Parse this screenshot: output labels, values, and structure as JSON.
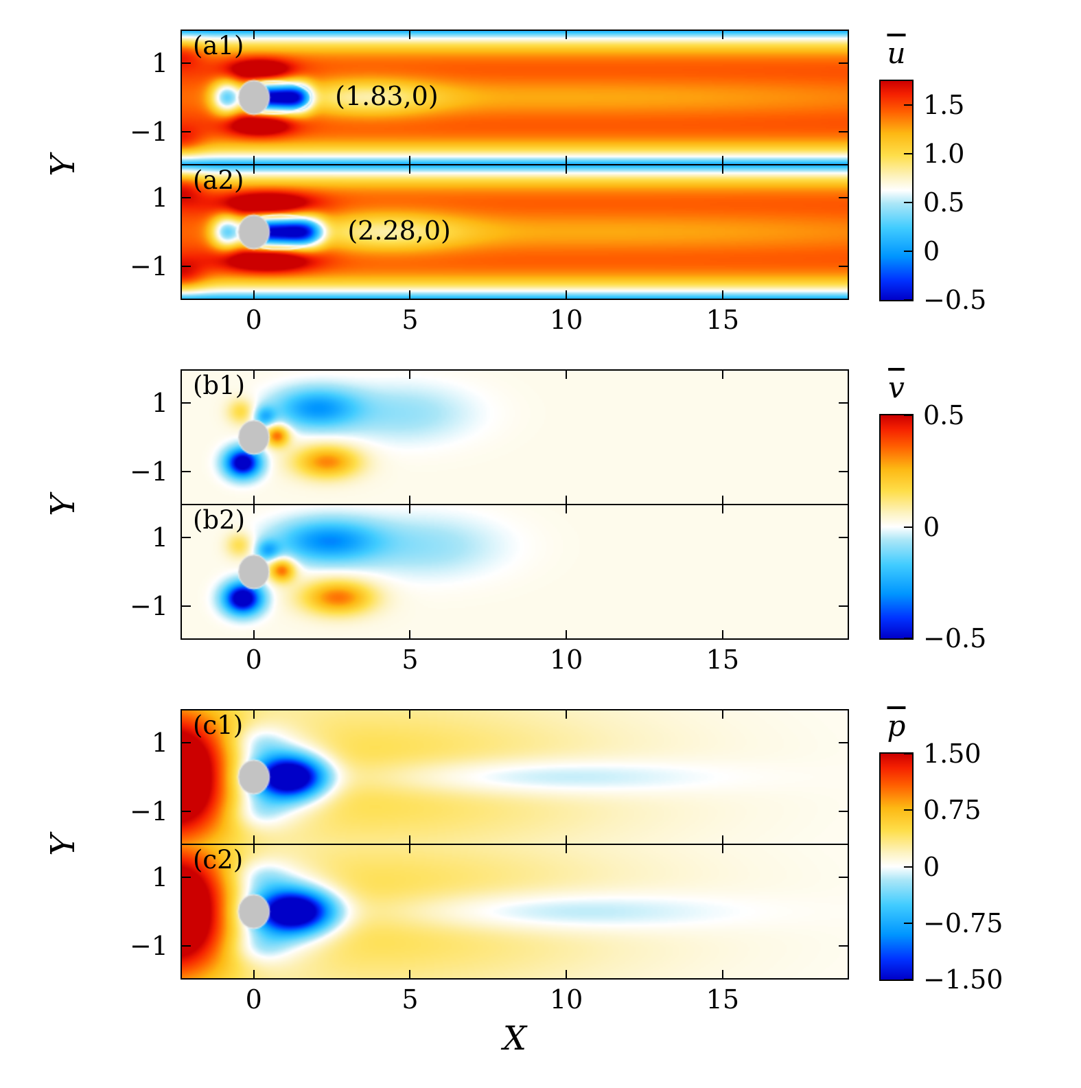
{
  "figure": {
    "xlabel": "X",
    "ylabel": "Y",
    "x_range": [
      -2.3,
      19.0
    ],
    "y_range": [
      -1.95,
      1.95
    ],
    "x_ticks": [
      {
        "v": 0,
        "label": "0"
      },
      {
        "v": 5,
        "label": "5"
      },
      {
        "v": 10,
        "label": "10"
      },
      {
        "v": 15,
        "label": "15"
      }
    ],
    "y_ticks": [
      {
        "v": 1,
        "label": "1"
      },
      {
        "v": -1,
        "label": "−1"
      }
    ]
  },
  "chart_data": {
    "type": "heatmap",
    "description": "Time-averaged flow fields past a circular cylinder: streamwise velocity (a), transverse velocity (b), pressure (c); two cases each.",
    "colormap": [
      [
        0.0,
        "#0000c8"
      ],
      [
        0.09,
        "#0032ff"
      ],
      [
        0.2,
        "#0096ff"
      ],
      [
        0.33,
        "#41ccff"
      ],
      [
        0.44,
        "#aae6f7"
      ],
      [
        0.5,
        "#ffffff"
      ],
      [
        0.56,
        "#fdf3c3"
      ],
      [
        0.66,
        "#fede4a"
      ],
      [
        0.76,
        "#fdb813"
      ],
      [
        0.86,
        "#ff5f00"
      ],
      [
        0.94,
        "#f52000"
      ],
      [
        1.0,
        "#cc0000"
      ]
    ],
    "cylinder": {
      "x": 0,
      "y": 0,
      "radius": 0.5,
      "color": "#c3c3c3"
    },
    "groups": [
      {
        "id": "u",
        "colorbar": {
          "label": "u",
          "range": [
            -0.5,
            1.75
          ],
          "ticks": [
            {
              "v": 1.5,
              "label": "1.5"
            },
            {
              "v": 1.0,
              "label": "1.0"
            },
            {
              "v": 0.5,
              "label": "0.5"
            },
            {
              "v": 0,
              "label": "0"
            },
            {
              "v": -0.5,
              "label": "−0.5"
            }
          ]
        },
        "panels": [
          {
            "label": "(a1)",
            "annotation": {
              "text": "(1.83,0)",
              "x": 2.6,
              "y": 0.02
            },
            "recirculation_closure_point": [
              1.83,
              0
            ],
            "contour": {
              "x0": -0.55,
              "x1": 1.83,
              "ry": 0.48
            },
            "cylinder": true,
            "field": {
              "base": {
                "type": "channel",
                "U": 1.55,
                "H": 1.97,
                "p": 4
              },
              "blobs": [
                {
                  "x": 0.2,
                  "y": 0.8,
                  "sx": 1.05,
                  "sy": 0.34,
                  "a": 0.68
                },
                {
                  "x": 0.2,
                  "y": -0.8,
                  "sx": 1.05,
                  "sy": 0.34,
                  "a": 0.68
                },
                {
                  "x": -2.3,
                  "y": 1.3,
                  "sx": 0.7,
                  "sy": 0.45,
                  "a": 0.3
                },
                {
                  "x": -2.3,
                  "y": -1.3,
                  "sx": 0.7,
                  "sy": 0.45,
                  "a": 0.3
                },
                {
                  "x": -0.85,
                  "y": 0,
                  "sx": 0.5,
                  "sy": 0.5,
                  "a": -1.05
                },
                {
                  "x": 0.8,
                  "y": 0,
                  "sx": 1.0,
                  "sy": 0.44,
                  "px": 4,
                  "a": -1.9
                },
                {
                  "x": 3.6,
                  "y": 0,
                  "sx": 2.3,
                  "sy": 0.55,
                  "a": -0.5
                },
                {
                  "x": 10,
                  "y": 0,
                  "sx": 14,
                  "sy": 0.62,
                  "a": -0.3
                }
              ]
            }
          },
          {
            "label": "(a2)",
            "annotation": {
              "text": "(2.28,0)",
              "x": 3.0,
              "y": 0.02
            },
            "recirculation_closure_point": [
              2.28,
              0
            ],
            "contour": {
              "x0": -0.55,
              "x1": 2.28,
              "ry": 0.5
            },
            "cylinder": true,
            "field": {
              "base": {
                "type": "channel",
                "U": 1.55,
                "H": 1.97,
                "p": 4
              },
              "blobs": [
                {
                  "x": 0.45,
                  "y": 0.82,
                  "sx": 1.45,
                  "sy": 0.36,
                  "a": 0.72
                },
                {
                  "x": 0.45,
                  "y": -0.82,
                  "sx": 1.45,
                  "sy": 0.36,
                  "a": 0.72
                },
                {
                  "x": -2.3,
                  "y": 1.3,
                  "sx": 0.75,
                  "sy": 0.5,
                  "a": 0.38
                },
                {
                  "x": -2.3,
                  "y": -1.3,
                  "sx": 0.75,
                  "sy": 0.5,
                  "a": 0.38
                },
                {
                  "x": -0.85,
                  "y": 0,
                  "sx": 0.5,
                  "sy": 0.5,
                  "a": -1.05
                },
                {
                  "x": 0.95,
                  "y": 0,
                  "sx": 1.2,
                  "sy": 0.46,
                  "px": 4,
                  "a": -1.9
                },
                {
                  "x": 4.2,
                  "y": 0,
                  "sx": 2.5,
                  "sy": 0.58,
                  "a": -0.5
                },
                {
                  "x": 11,
                  "y": 0,
                  "sx": 14,
                  "sy": 0.65,
                  "a": -0.3
                }
              ]
            }
          }
        ]
      },
      {
        "id": "v",
        "colorbar": {
          "label": "v",
          "range": [
            -0.5,
            0.5
          ],
          "ticks": [
            {
              "v": 0.5,
              "label": "0.5"
            },
            {
              "v": 0,
              "label": "0"
            },
            {
              "v": -0.5,
              "label": "−0.5"
            }
          ]
        },
        "panels": [
          {
            "label": "(b1)",
            "cylinder": true,
            "field": {
              "base": {
                "type": "const",
                "c": 0.02
              },
              "blobs": [
                {
                  "x": -0.35,
                  "y": -0.75,
                  "sx": 0.55,
                  "sy": 0.42,
                  "a": -0.62
                },
                {
                  "x": -0.4,
                  "y": 0.75,
                  "sx": 0.45,
                  "sy": 0.38,
                  "a": 0.16
                },
                {
                  "x": 2.0,
                  "y": 0.85,
                  "sx": 1.35,
                  "sy": 0.58,
                  "a": -0.3
                },
                {
                  "x": 4.8,
                  "y": 0.7,
                  "sx": 2.2,
                  "sy": 0.85,
                  "a": -0.1
                },
                {
                  "x": 2.35,
                  "y": -0.72,
                  "sx": 1.05,
                  "sy": 0.48,
                  "a": 0.3
                },
                {
                  "x": 0.75,
                  "y": 0.05,
                  "sx": 0.38,
                  "sy": 0.32,
                  "a": 0.34
                },
                {
                  "x": 0.35,
                  "y": 0.6,
                  "sx": 0.35,
                  "sy": 0.3,
                  "a": -0.22
                }
              ]
            }
          },
          {
            "label": "(b2)",
            "cylinder": true,
            "field": {
              "base": {
                "type": "const",
                "c": 0.02
              },
              "blobs": [
                {
                  "x": -0.35,
                  "y": -0.78,
                  "sx": 0.6,
                  "sy": 0.45,
                  "a": -0.65
                },
                {
                  "x": -0.45,
                  "y": 0.78,
                  "sx": 0.45,
                  "sy": 0.38,
                  "a": 0.15
                },
                {
                  "x": 2.35,
                  "y": 0.9,
                  "sx": 1.65,
                  "sy": 0.62,
                  "a": -0.32
                },
                {
                  "x": 5.5,
                  "y": 0.75,
                  "sx": 2.4,
                  "sy": 0.9,
                  "a": -0.1
                },
                {
                  "x": 2.7,
                  "y": -0.75,
                  "sx": 1.15,
                  "sy": 0.5,
                  "a": 0.32
                },
                {
                  "x": 0.9,
                  "y": 0.05,
                  "sx": 0.42,
                  "sy": 0.34,
                  "a": 0.34
                },
                {
                  "x": 0.45,
                  "y": 0.62,
                  "sx": 0.38,
                  "sy": 0.3,
                  "a": -0.22
                }
              ]
            }
          }
        ]
      },
      {
        "id": "p",
        "colorbar": {
          "label": "p",
          "range": [
            -1.5,
            1.5
          ],
          "ticks": [
            {
              "v": 1.5,
              "label": "1.50"
            },
            {
              "v": 0.75,
              "label": "0.75"
            },
            {
              "v": 0,
              "label": "0"
            },
            {
              "v": -0.75,
              "label": "−0.75"
            },
            {
              "v": -1.5,
              "label": "−1.50"
            }
          ]
        },
        "panels": [
          {
            "label": "(c1)",
            "cylinder": true,
            "field": {
              "base": {
                "type": "const",
                "c": 0.03
              },
              "blobs": [
                {
                  "x": -2.6,
                  "y": 0,
                  "sx": 1.9,
                  "sy": 2.0,
                  "a": 1.9
                },
                {
                  "x": 3.0,
                  "y": 0,
                  "sx": 9,
                  "sy": 2.6,
                  "a": 0.5
                },
                {
                  "x": 1.2,
                  "y": 0,
                  "sx": 1.1,
                  "sy": 0.6,
                  "a": -1.9
                },
                {
                  "x": 0.6,
                  "y": 0,
                  "sx": 1.5,
                  "sy": 1.15,
                  "a": -0.85
                },
                {
                  "x": 0.1,
                  "y": 1.05,
                  "sx": 0.9,
                  "sy": 0.5,
                  "a": -0.35
                },
                {
                  "x": 0.1,
                  "y": -1.05,
                  "sx": 0.9,
                  "sy": 0.5,
                  "a": -0.35
                },
                {
                  "x": 8.5,
                  "y": 0,
                  "sx": 5.5,
                  "sy": 0.55,
                  "a": -0.45
                }
              ]
            }
          },
          {
            "label": "(c2)",
            "cylinder": true,
            "field": {
              "base": {
                "type": "const",
                "c": 0.03
              },
              "blobs": [
                {
                  "x": -2.6,
                  "y": 0,
                  "sx": 1.9,
                  "sy": 2.0,
                  "a": 1.9
                },
                {
                  "x": 3.2,
                  "y": 0,
                  "sx": 9,
                  "sy": 2.6,
                  "a": 0.5
                },
                {
                  "x": 1.35,
                  "y": 0,
                  "sx": 1.25,
                  "sy": 0.62,
                  "a": -1.9
                },
                {
                  "x": 0.7,
                  "y": 0,
                  "sx": 1.6,
                  "sy": 1.2,
                  "a": -0.85
                },
                {
                  "x": 0.15,
                  "y": 1.05,
                  "sx": 0.95,
                  "sy": 0.5,
                  "a": -0.35
                },
                {
                  "x": 0.15,
                  "y": -1.05,
                  "sx": 0.95,
                  "sy": 0.5,
                  "a": -0.35
                },
                {
                  "x": 9,
                  "y": 0,
                  "sx": 5.5,
                  "sy": 0.6,
                  "a": -0.45
                }
              ]
            }
          }
        ]
      }
    ]
  }
}
